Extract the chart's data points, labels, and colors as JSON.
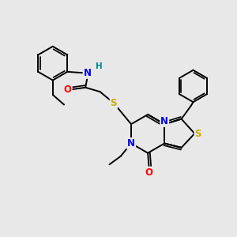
{
  "background_color": "#e8e8e8",
  "bond_color": "#000000",
  "bond_width": 1.4,
  "atom_colors": {
    "N": "#0000ee",
    "S": "#ccaa00",
    "O": "#ff0000",
    "H": "#008888",
    "C": "#000000"
  },
  "font_size_atom": 8.5
}
